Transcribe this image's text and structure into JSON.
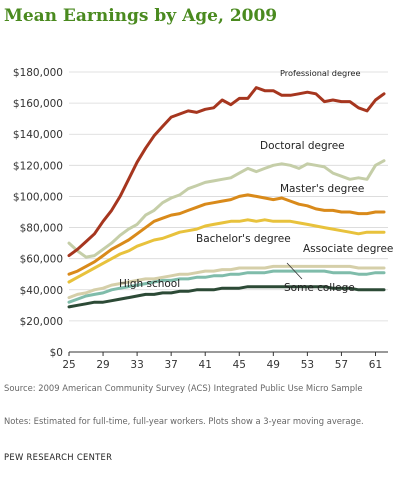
{
  "chart_data": {
    "type": "line",
    "title": "Mean Earnings by Age, 2009",
    "xlabel": "",
    "ylabel": "",
    "x": [
      25,
      26,
      27,
      28,
      29,
      30,
      31,
      32,
      33,
      34,
      35,
      36,
      37,
      38,
      39,
      40,
      41,
      42,
      43,
      44,
      45,
      46,
      47,
      48,
      49,
      50,
      51,
      52,
      53,
      54,
      55,
      56,
      57,
      58,
      59,
      60,
      61,
      62
    ],
    "xticks": [
      25,
      29,
      33,
      37,
      41,
      45,
      49,
      53,
      57,
      61
    ],
    "xtick_labels": [
      "25",
      "29",
      "33",
      "37",
      "41",
      "45",
      "49",
      "53",
      "57",
      "61"
    ],
    "xlim": [
      25,
      62
    ],
    "ylim": [
      0,
      180000
    ],
    "yticks": [
      0,
      20000,
      40000,
      60000,
      80000,
      100000,
      120000,
      140000,
      160000,
      180000
    ],
    "ytick_labels": [
      "$0",
      "$20,000",
      "$40,000",
      "$60,000",
      "$80,000",
      "$100,000",
      "$120,000",
      "$140,000",
      "$160,000",
      "$180,000"
    ],
    "grid": true,
    "legend": "none (series labeled directly on plot)",
    "series": [
      {
        "name": "Professional degree",
        "color": "#a6361f",
        "values": [
          62000,
          66000,
          71000,
          76000,
          84000,
          91000,
          100000,
          111000,
          122000,
          131000,
          139000,
          145000,
          151000,
          153000,
          155000,
          154000,
          156000,
          157000,
          162000,
          159000,
          163000,
          163000,
          170000,
          168000,
          168000,
          165000,
          165000,
          166000,
          167000,
          166000,
          161000,
          162000,
          161000,
          161000,
          157000,
          155000,
          162000,
          166000
        ]
      },
      {
        "name": "Doctoral degree",
        "color": "#c5cea8",
        "values": [
          70000,
          65000,
          61000,
          62000,
          66000,
          70000,
          75000,
          79000,
          82000,
          88000,
          91000,
          96000,
          99000,
          101000,
          105000,
          107000,
          109000,
          110000,
          111000,
          112000,
          115000,
          118000,
          116000,
          118000,
          120000,
          121000,
          120000,
          118000,
          121000,
          120000,
          119000,
          115000,
          113000,
          111000,
          112000,
          111000,
          120000,
          123000
        ]
      },
      {
        "name": "Master's degree",
        "color": "#d98a1a",
        "values": [
          50000,
          52000,
          55000,
          58000,
          62000,
          66000,
          69000,
          72000,
          76000,
          80000,
          84000,
          86000,
          88000,
          89000,
          91000,
          93000,
          95000,
          96000,
          97000,
          98000,
          100000,
          101000,
          100000,
          99000,
          98000,
          99000,
          97000,
          95000,
          94000,
          92000,
          91000,
          91000,
          90000,
          90000,
          89000,
          89000,
          90000,
          90000
        ]
      },
      {
        "name": "Bachelor's degree",
        "color": "#e8c23c",
        "values": [
          45000,
          48000,
          51000,
          54000,
          57000,
          60000,
          63000,
          65000,
          68000,
          70000,
          72000,
          73000,
          75000,
          77000,
          78000,
          79000,
          81000,
          82000,
          83000,
          84000,
          84000,
          85000,
          84000,
          85000,
          84000,
          84000,
          84000,
          83000,
          82000,
          81000,
          80000,
          79000,
          78000,
          77000,
          76000,
          77000,
          77000,
          77000
        ]
      },
      {
        "name": "Associate degree",
        "color": "#d5cfa9",
        "values": [
          35000,
          37000,
          38000,
          40000,
          41000,
          43000,
          44000,
          45000,
          46000,
          47000,
          47000,
          48000,
          49000,
          50000,
          50000,
          51000,
          52000,
          52000,
          53000,
          53000,
          54000,
          54000,
          54000,
          54000,
          55000,
          55000,
          55000,
          55000,
          55000,
          55000,
          55000,
          55000,
          55000,
          55000,
          54000,
          54000,
          54000,
          54000
        ]
      },
      {
        "name": "Some college",
        "color": "#7fbcaa",
        "values": [
          32000,
          34000,
          36000,
          37000,
          38000,
          40000,
          41000,
          42000,
          43000,
          44000,
          45000,
          46000,
          46000,
          47000,
          47000,
          48000,
          48000,
          49000,
          49000,
          50000,
          50000,
          51000,
          51000,
          51000,
          52000,
          52000,
          52000,
          52000,
          52000,
          52000,
          52000,
          51000,
          51000,
          51000,
          50000,
          50000,
          51000,
          51000
        ]
      },
      {
        "name": "High school",
        "color": "#2c4a36",
        "values": [
          29000,
          30000,
          31000,
          32000,
          32000,
          33000,
          34000,
          35000,
          36000,
          37000,
          37000,
          38000,
          38000,
          39000,
          39000,
          40000,
          40000,
          40000,
          41000,
          41000,
          41000,
          42000,
          42000,
          42000,
          42000,
          42000,
          42000,
          42000,
          42000,
          42000,
          42000,
          41000,
          41000,
          41000,
          40000,
          40000,
          40000,
          40000
        ]
      }
    ],
    "annotations": [
      {
        "text": "Professional degree",
        "series": "Professional degree"
      },
      {
        "text": "Doctoral degree",
        "series": "Doctoral degree"
      },
      {
        "text": "Master's degree",
        "series": "Master's degree"
      },
      {
        "text": "Bachelor's degree",
        "series": "Bachelor's degree"
      },
      {
        "text": "Associate degree",
        "series": "Associate degree"
      },
      {
        "text": "Some college",
        "series": "Some college"
      },
      {
        "text": "High school",
        "series": "High school"
      }
    ]
  },
  "notes": {
    "source": "Source: 2009 American Community Survey (ACS) Integrated Public Use Micro Sample",
    "notes": "Notes: Estimated for full-time, full-year workers. Plots show a 3-year moving average.",
    "brand": "PEW RESEARCH CENTER"
  }
}
